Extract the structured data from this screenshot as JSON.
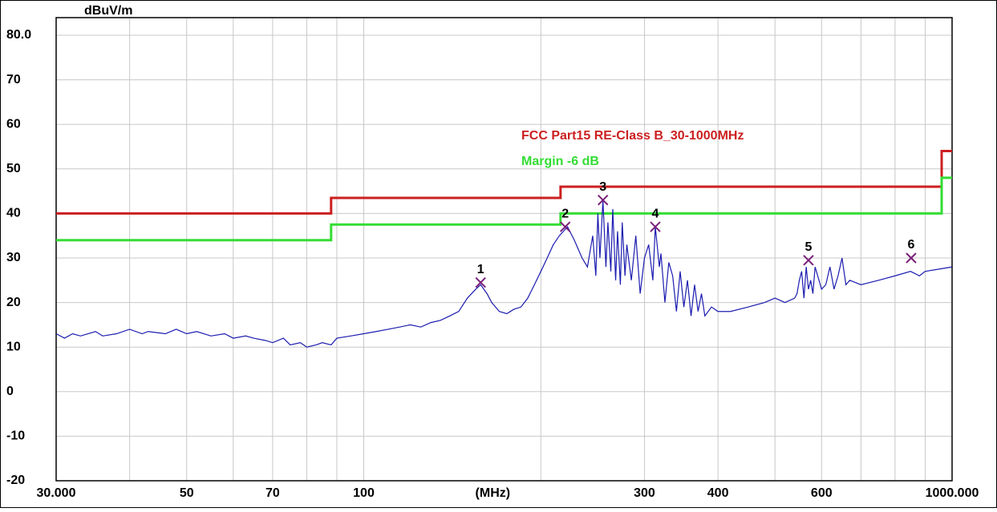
{
  "chart_data": {
    "type": "line",
    "y_unit": "dBuV/m",
    "x_unit": "(MHz)",
    "xscale": "log",
    "xlim": [
      30,
      1000
    ],
    "ylim": [
      -20,
      80
    ],
    "yticks": [
      {
        "value": 80,
        "label": "80.0"
      },
      70,
      60,
      50,
      40,
      30,
      20,
      10,
      0,
      -10,
      -20
    ],
    "xticks": [
      {
        "value": 30,
        "label": "30.000"
      },
      50,
      70,
      100,
      300,
      400,
      600,
      {
        "value": 1000,
        "label": "1000.000"
      }
    ],
    "x_unit_at": 200,
    "xgrid": [
      40,
      60,
      80,
      90,
      200,
      500,
      700,
      800,
      900
    ],
    "grid": true,
    "series": [
      {
        "name": "FCC Part15 RE-Class B_30-1000MHz",
        "color": "#cc1f1f",
        "x": [
          30,
          88,
          88,
          216,
          216,
          960,
          960,
          1000
        ],
        "values": [
          40,
          40,
          43.5,
          43.5,
          46,
          46,
          54,
          54
        ]
      },
      {
        "name": "Margin -6 dB",
        "color": "#33dd33",
        "x": [
          30,
          88,
          88,
          216,
          216,
          960,
          960,
          1000
        ],
        "values": [
          34,
          34,
          37.5,
          37.5,
          40,
          40,
          48,
          48
        ]
      },
      {
        "color": "#1c1cb0",
        "x": [
          30,
          31,
          32,
          33,
          35,
          36,
          38,
          40,
          42,
          43,
          46,
          48,
          50,
          52,
          55,
          58,
          60,
          63,
          65,
          68,
          70,
          73,
          75,
          78,
          80,
          83,
          85,
          88,
          90,
          95,
          100,
          105,
          110,
          115,
          120,
          125,
          130,
          135,
          140,
          145,
          150,
          155,
          158,
          162,
          165,
          170,
          175,
          180,
          185,
          190,
          195,
          200,
          205,
          210,
          215,
          222,
          228,
          235,
          240,
          245,
          248,
          250,
          252,
          255,
          258,
          260,
          263,
          265,
          268,
          270,
          273,
          275,
          278,
          280,
          285,
          290,
          295,
          300,
          305,
          310,
          313,
          318,
          320,
          325,
          330,
          335,
          340,
          345,
          350,
          355,
          360,
          365,
          370,
          375,
          380,
          390,
          400,
          420,
          450,
          480,
          500,
          520,
          540,
          545,
          550,
          555,
          560,
          565,
          570,
          575,
          580,
          585,
          600,
          610,
          620,
          630,
          640,
          650,
          660,
          670,
          700,
          750,
          800,
          850,
          880,
          900,
          950,
          1000
        ],
        "values": [
          13,
          12,
          13,
          12.5,
          13.5,
          12.5,
          13,
          14,
          13,
          13.5,
          13,
          14,
          13,
          13.5,
          12.5,
          13,
          12,
          12.5,
          12,
          11.5,
          11,
          12,
          10.5,
          11,
          10,
          10.5,
          11,
          10.5,
          12,
          12.5,
          13,
          13.5,
          14,
          14.5,
          15,
          14.5,
          15.5,
          16,
          17,
          18,
          21,
          23,
          24,
          22,
          20,
          18,
          17.5,
          18.5,
          19,
          21,
          24,
          27,
          30,
          33,
          35,
          37,
          34,
          30,
          28,
          35,
          26,
          40,
          30,
          43,
          28,
          38,
          27,
          41,
          25,
          36,
          24,
          38,
          26,
          33,
          25,
          35,
          22,
          30,
          33,
          25,
          37,
          28,
          31,
          20,
          29,
          26,
          18,
          27,
          19,
          25,
          17,
          24,
          18,
          22,
          17,
          19,
          18,
          18,
          19,
          20,
          21,
          20,
          21,
          22,
          25,
          27,
          21,
          28,
          23,
          25,
          22,
          28,
          23,
          24,
          28,
          23,
          26,
          30,
          24,
          25,
          24,
          25,
          26,
          27,
          26,
          27,
          27.5,
          28
        ]
      }
    ],
    "markers": {
      "color": "#7a1f7a",
      "labels": [
        "1",
        "2",
        "3",
        "4",
        "5",
        "6"
      ],
      "x": [
        158,
        220,
        255,
        313,
        570,
        852
      ],
      "values": [
        24.5,
        37,
        43,
        37,
        29.5,
        30
      ]
    }
  }
}
